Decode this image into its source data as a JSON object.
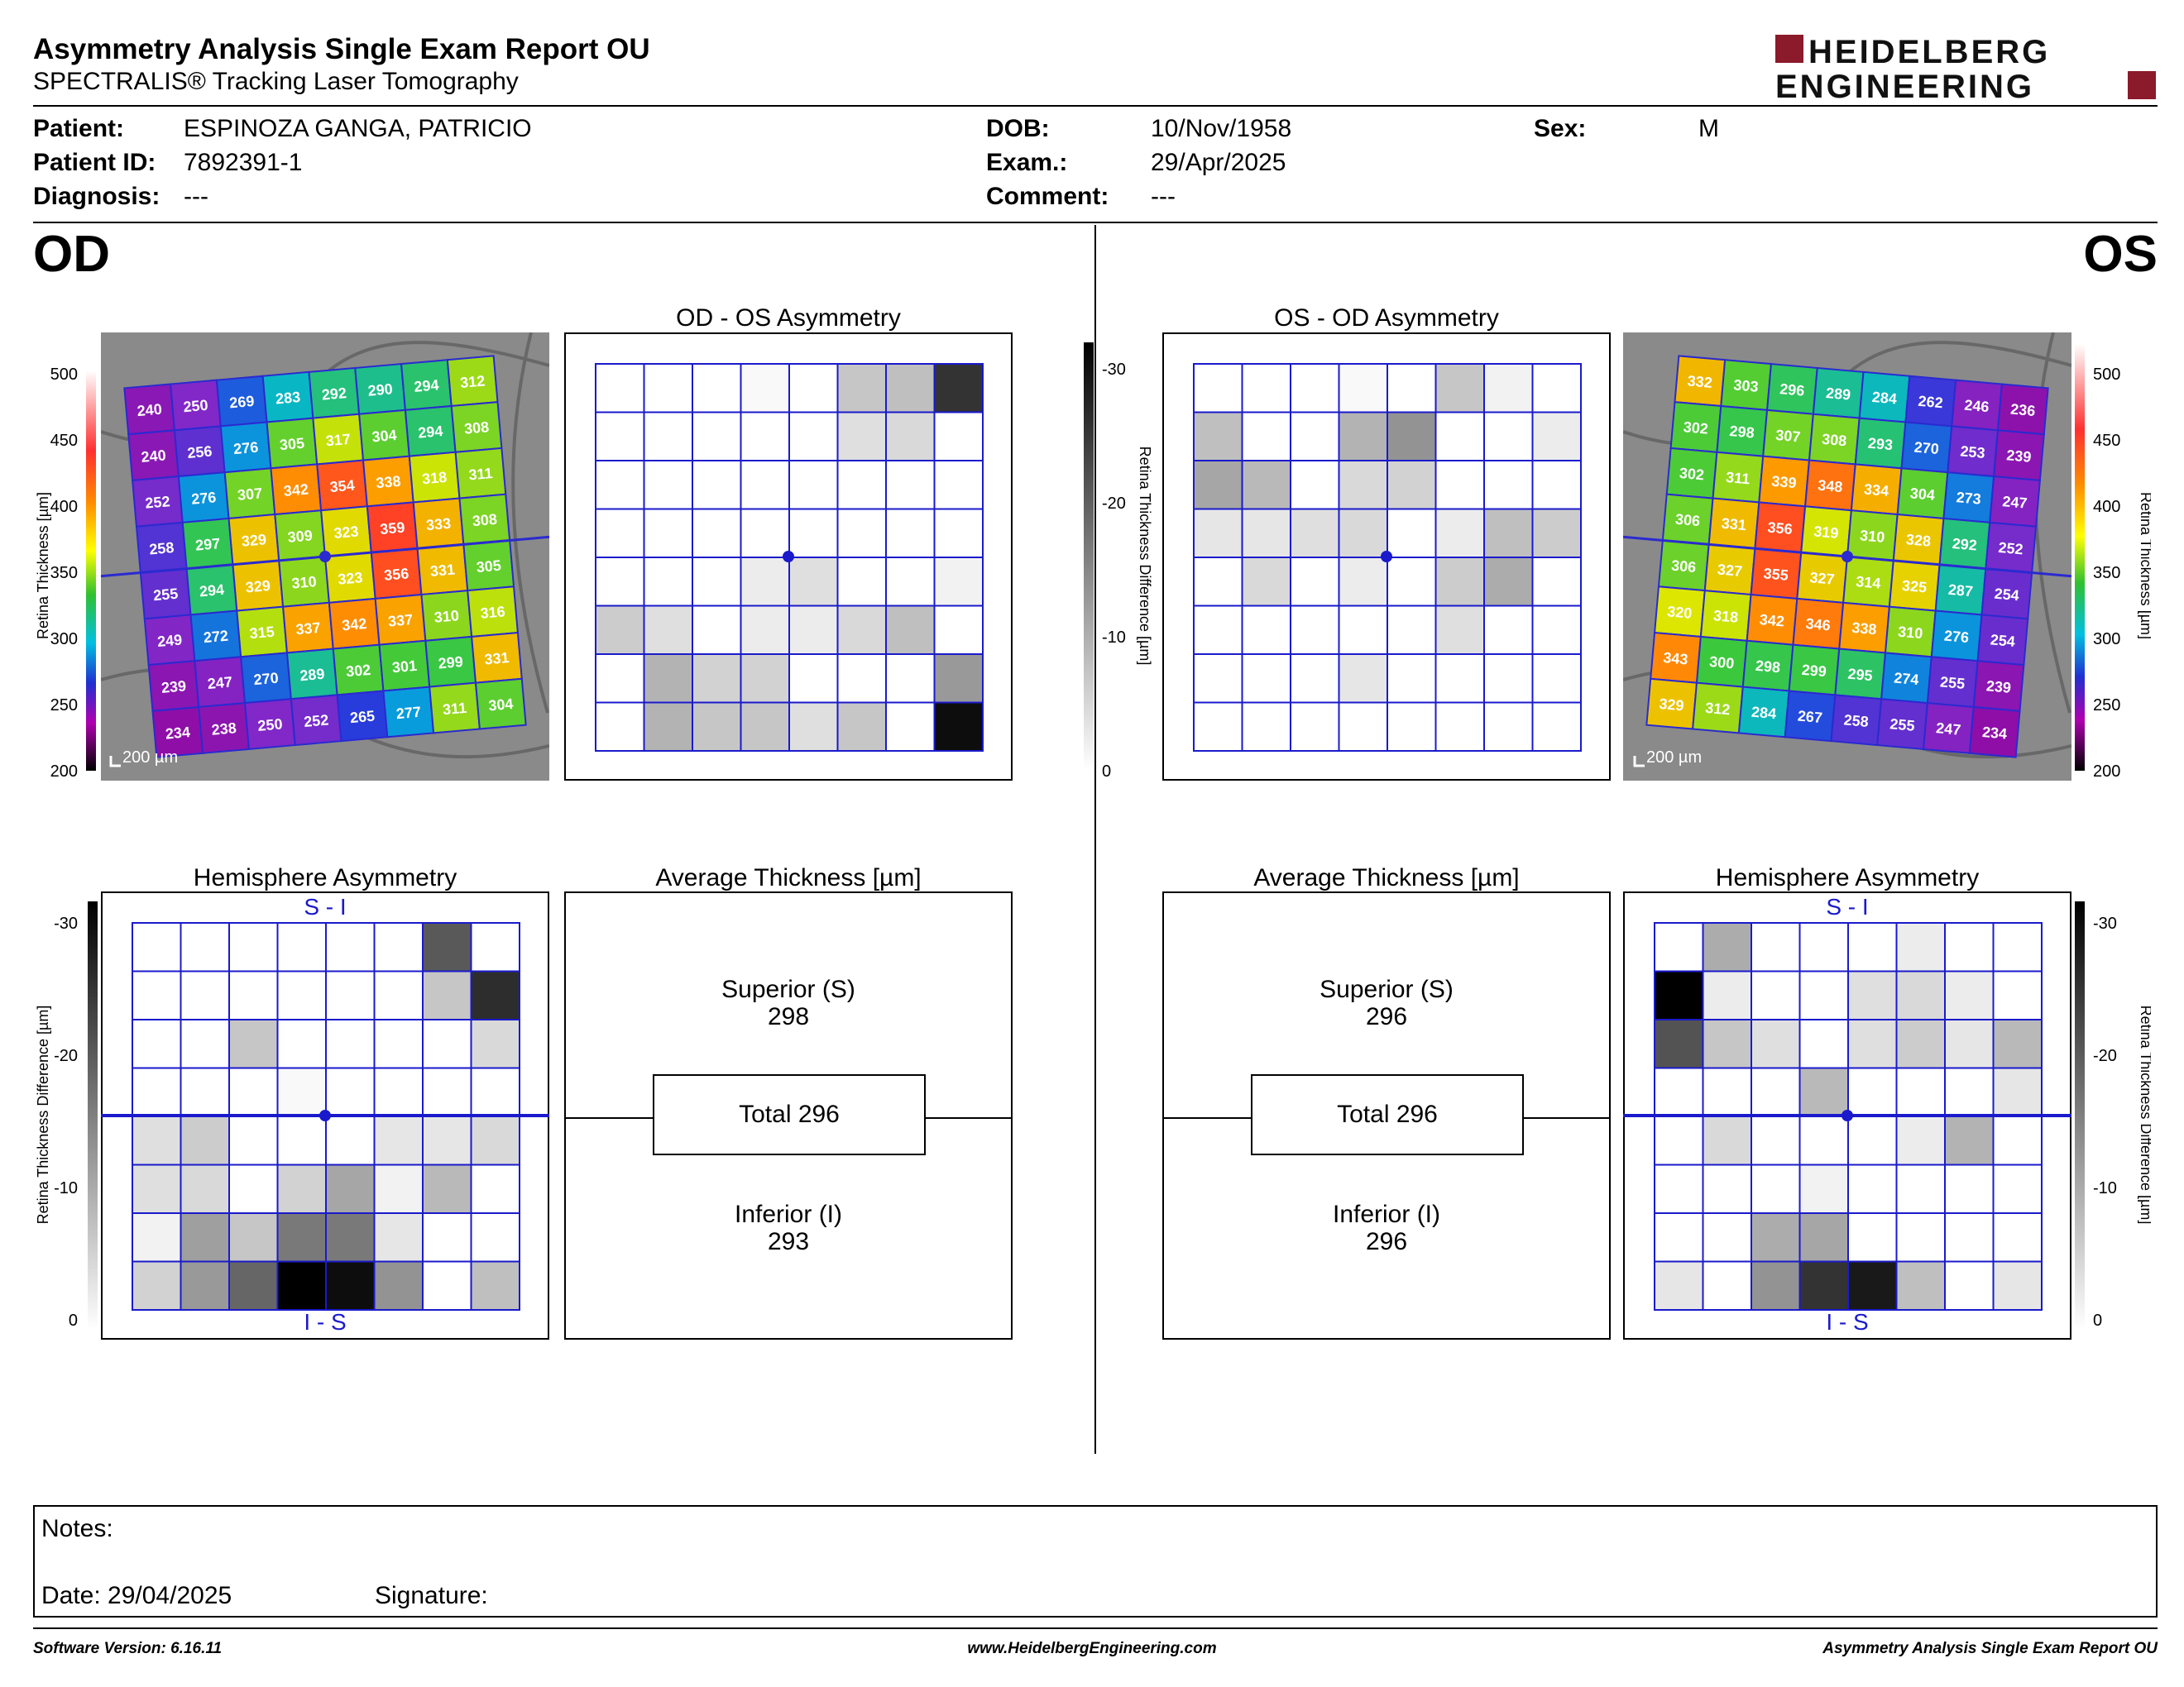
{
  "header": {
    "title": "Asymmetry Analysis Single Exam Report OU",
    "subtitle": "SPECTRALIS® Tracking Laser Tomography",
    "logo_line1": "HEIDELBERG",
    "logo_line2": "ENGINEERING",
    "brand_color": "#8b1a2b"
  },
  "patient": {
    "patient_label": "Patient:",
    "patient_value": "ESPINOZA GANGA, PATRICIO",
    "id_label": "Patient ID:",
    "id_value": "7892391-1",
    "diagnosis_label": "Diagnosis:",
    "diagnosis_value": "---",
    "dob_label": "DOB:",
    "dob_value": "10/Nov/1958",
    "exam_label": "Exam.:",
    "exam_value": "29/Apr/2025",
    "comment_label": "Comment:",
    "comment_value": "---",
    "sex_label": "Sex:",
    "sex_value": "M"
  },
  "od": {
    "eye_label": "OD",
    "asym_title": "OD - OS Asymmetry",
    "hemi_title": "Hemisphere Asymmetry",
    "avg_title": "Average Thickness [µm]",
    "hemi_top": "S - I",
    "hemi_bottom": "I - S",
    "superior_label": "Superior (S)",
    "superior_value": "298",
    "total_label": "Total 296",
    "inferior_label": "Inferior (I)",
    "inferior_value": "293",
    "scale_bar": "200 µm",
    "thickness_grid": [
      [
        240,
        250,
        269,
        283,
        292,
        290,
        294,
        312
      ],
      [
        240,
        256,
        276,
        305,
        317,
        304,
        294,
        308
      ],
      [
        252,
        276,
        307,
        342,
        354,
        338,
        318,
        311
      ],
      [
        258,
        297,
        329,
        309,
        323,
        359,
        333,
        308
      ],
      [
        255,
        294,
        329,
        310,
        323,
        356,
        331,
        305
      ],
      [
        249,
        272,
        315,
        337,
        342,
        337,
        310,
        316
      ],
      [
        239,
        247,
        270,
        289,
        302,
        301,
        299,
        331
      ],
      [
        234,
        238,
        250,
        252,
        265,
        277,
        311,
        304
      ]
    ],
    "asym_grid": [
      [
        0,
        0,
        0,
        1,
        0,
        9,
        10,
        32
      ],
      [
        0,
        0,
        0,
        0,
        0,
        5,
        6,
        0
      ],
      [
        0,
        0,
        0,
        0,
        0,
        0,
        0,
        0
      ],
      [
        0,
        0,
        0,
        0,
        0,
        0,
        0,
        0
      ],
      [
        0,
        0,
        0,
        3,
        5,
        0,
        0,
        2
      ],
      [
        8,
        5,
        0,
        3,
        3,
        6,
        10,
        0
      ],
      [
        0,
        12,
        7,
        7,
        0,
        0,
        0,
        16
      ],
      [
        0,
        12,
        9,
        9,
        5,
        9,
        0,
        38
      ]
    ],
    "hemi_grid": [
      [
        0,
        0,
        0,
        0,
        0,
        0,
        26,
        0
      ],
      [
        0,
        0,
        0,
        0,
        0,
        0,
        9,
        33
      ],
      [
        0,
        0,
        9,
        0,
        0,
        0,
        0,
        6
      ],
      [
        0,
        0,
        0,
        1,
        0,
        0,
        0,
        0
      ],
      [
        5,
        8,
        0,
        0,
        0,
        4,
        4,
        6
      ],
      [
        5,
        6,
        0,
        7,
        14,
        2,
        11,
        0
      ],
      [
        2,
        15,
        9,
        21,
        21,
        4,
        0,
        0
      ],
      [
        7,
        16,
        24,
        42,
        38,
        17,
        0,
        10
      ]
    ]
  },
  "os": {
    "eye_label": "OS",
    "asym_title": "OS - OD Asymmetry",
    "hemi_title": "Hemisphere Asymmetry",
    "avg_title": "Average Thickness [µm]",
    "hemi_top": "S - I",
    "hemi_bottom": "I - S",
    "superior_label": "Superior (S)",
    "superior_value": "296",
    "total_label": "Total 296",
    "inferior_label": "Inferior (I)",
    "inferior_value": "296",
    "scale_bar": "200 µm",
    "thickness_grid": [
      [
        332,
        303,
        296,
        289,
        284,
        262,
        246,
        236
      ],
      [
        302,
        298,
        307,
        308,
        293,
        270,
        253,
        239
      ],
      [
        302,
        311,
        339,
        348,
        334,
        304,
        273,
        247
      ],
      [
        306,
        331,
        356,
        319,
        310,
        328,
        292,
        252
      ],
      [
        306,
        327,
        355,
        327,
        314,
        325,
        287,
        254
      ],
      [
        320,
        318,
        342,
        346,
        338,
        310,
        276,
        254
      ],
      [
        343,
        300,
        298,
        299,
        295,
        274,
        255,
        239
      ],
      [
        329,
        312,
        284,
        267,
        258,
        255,
        247,
        234
      ]
    ],
    "asym_grid": [
      [
        0,
        0,
        0,
        1,
        0,
        9,
        2,
        0
      ],
      [
        10,
        0,
        0,
        12,
        17,
        0,
        0,
        3
      ],
      [
        14,
        11,
        0,
        6,
        7,
        0,
        0,
        0
      ],
      [
        4,
        4,
        5,
        6,
        0,
        3,
        10,
        8
      ],
      [
        0,
        6,
        0,
        3,
        0,
        8,
        13,
        0
      ],
      [
        0,
        0,
        0,
        0,
        0,
        5,
        0,
        0
      ],
      [
        0,
        0,
        0,
        4,
        0,
        0,
        0,
        0
      ],
      [
        0,
        0,
        0,
        0,
        0,
        0,
        0,
        0
      ]
    ],
    "hemi_grid": [
      [
        0,
        13,
        0,
        0,
        0,
        3,
        0,
        0
      ],
      [
        42,
        3,
        0,
        0,
        5,
        6,
        3,
        0
      ],
      [
        27,
        9,
        5,
        0,
        5,
        8,
        4,
        11
      ],
      [
        0,
        0,
        0,
        11,
        0,
        0,
        0,
        4
      ],
      [
        0,
        6,
        0,
        0,
        0,
        3,
        12,
        0
      ],
      [
        0,
        0,
        0,
        2,
        0,
        0,
        0,
        0
      ],
      [
        0,
        0,
        13,
        14,
        0,
        0,
        0,
        0
      ],
      [
        4,
        0,
        17,
        32,
        36,
        10,
        0,
        4
      ]
    ]
  },
  "colorbar": {
    "thickness_label": "Retina Thickness [µm]",
    "thickness_ticks": [
      "500",
      "450",
      "400",
      "350",
      "300",
      "250",
      "200"
    ],
    "diff_label": "Retina Thickness Difference [µm]",
    "diff_ticks": [
      "-30",
      "-20",
      "-10",
      "0"
    ]
  },
  "notes": {
    "notes_label": "Notes:",
    "date_label": "Date: 29/04/2025",
    "signature_label": "Signature:"
  },
  "footer": {
    "software": "Software Version: 6.16.11",
    "website": "www.HeidelbergEngineering.com",
    "report": "Asymmetry Analysis Single Exam Report OU"
  }
}
